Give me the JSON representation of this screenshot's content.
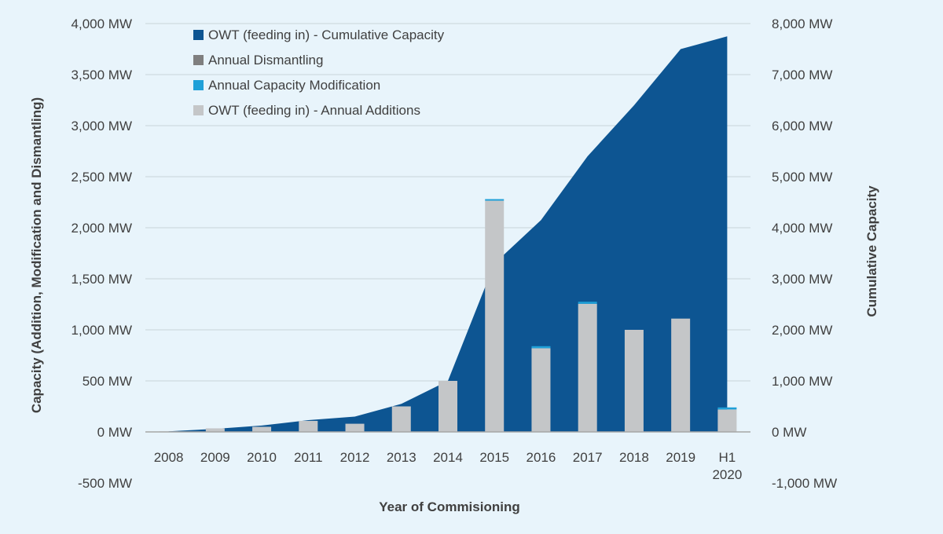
{
  "chart_data": {
    "type": "bar",
    "xlabel": "Year of Commisioning",
    "ylabel_left": "Capacity (Addition, Modification and Dismantling)",
    "ylabel_right": "Cumulative Capacity",
    "y_left_range": [
      -1000,
      4000
    ],
    "y_right_range": [
      -2000,
      8000
    ],
    "y_left_ticks": [
      "-500 MW",
      "0 MW",
      "500 MW",
      "1,000 MW",
      "1,500 MW",
      "2,000 MW",
      "2,500 MW",
      "3,000 MW",
      "3,500 MW",
      "4,000 MW"
    ],
    "y_left_tick_values": [
      -500,
      0,
      500,
      1000,
      1500,
      2000,
      2500,
      3000,
      3500,
      4000
    ],
    "y_right_ticks": [
      "-1,000 MW",
      "0 MW",
      "1,000 MW",
      "2,000 MW",
      "3,000 MW",
      "4,000 MW",
      "5,000 MW",
      "6,000 MW",
      "7,000 MW",
      "8,000 MW"
    ],
    "y_right_tick_values": [
      -1000,
      0,
      1000,
      2000,
      3000,
      4000,
      5000,
      6000,
      7000,
      8000
    ],
    "categories": [
      "2008",
      "2009",
      "2010",
      "2011",
      "2012",
      "2013",
      "2014",
      "2015",
      "2016",
      "2017",
      "2018",
      "2019",
      "H1 2020"
    ],
    "category_lines": [
      [
        "2008"
      ],
      [
        "2009"
      ],
      [
        "2010"
      ],
      [
        "2011"
      ],
      [
        "2012"
      ],
      [
        "2013"
      ],
      [
        "2014"
      ],
      [
        "2015"
      ],
      [
        "2016"
      ],
      [
        "2017"
      ],
      [
        "2018"
      ],
      [
        "2019"
      ],
      [
        "H1",
        "2020"
      ]
    ],
    "grid": true,
    "legend_position": "top-left",
    "series": [
      {
        "name": "OWT (feeding in) - Cumulative Capacity",
        "kind": "area",
        "axis": "right",
        "color": "#0d5592",
        "values": [
          12,
          60,
          125,
          230,
          300,
          550,
          1000,
          3300,
          4150,
          5400,
          6400,
          7500,
          7750
        ]
      },
      {
        "name": "Annual Dismantling",
        "kind": "bar",
        "axis": "left",
        "color": "#7f7f7f",
        "values": [
          0,
          0,
          0,
          0,
          0,
          0,
          0,
          0,
          0,
          0,
          0,
          0,
          0
        ]
      },
      {
        "name": "Annual Capacity Modification",
        "kind": "bar",
        "axis": "left",
        "color": "#1fa0d8",
        "values": [
          0,
          0,
          0,
          0,
          0,
          0,
          0,
          15,
          20,
          20,
          0,
          0,
          20
        ]
      },
      {
        "name": "OWT (feeding in) - Annual Additions",
        "kind": "bar",
        "axis": "left",
        "color": "#c4c6c8",
        "values": [
          5,
          35,
          50,
          108,
          80,
          250,
          500,
          2265,
          820,
          1255,
          1000,
          1110,
          220
        ]
      }
    ]
  }
}
